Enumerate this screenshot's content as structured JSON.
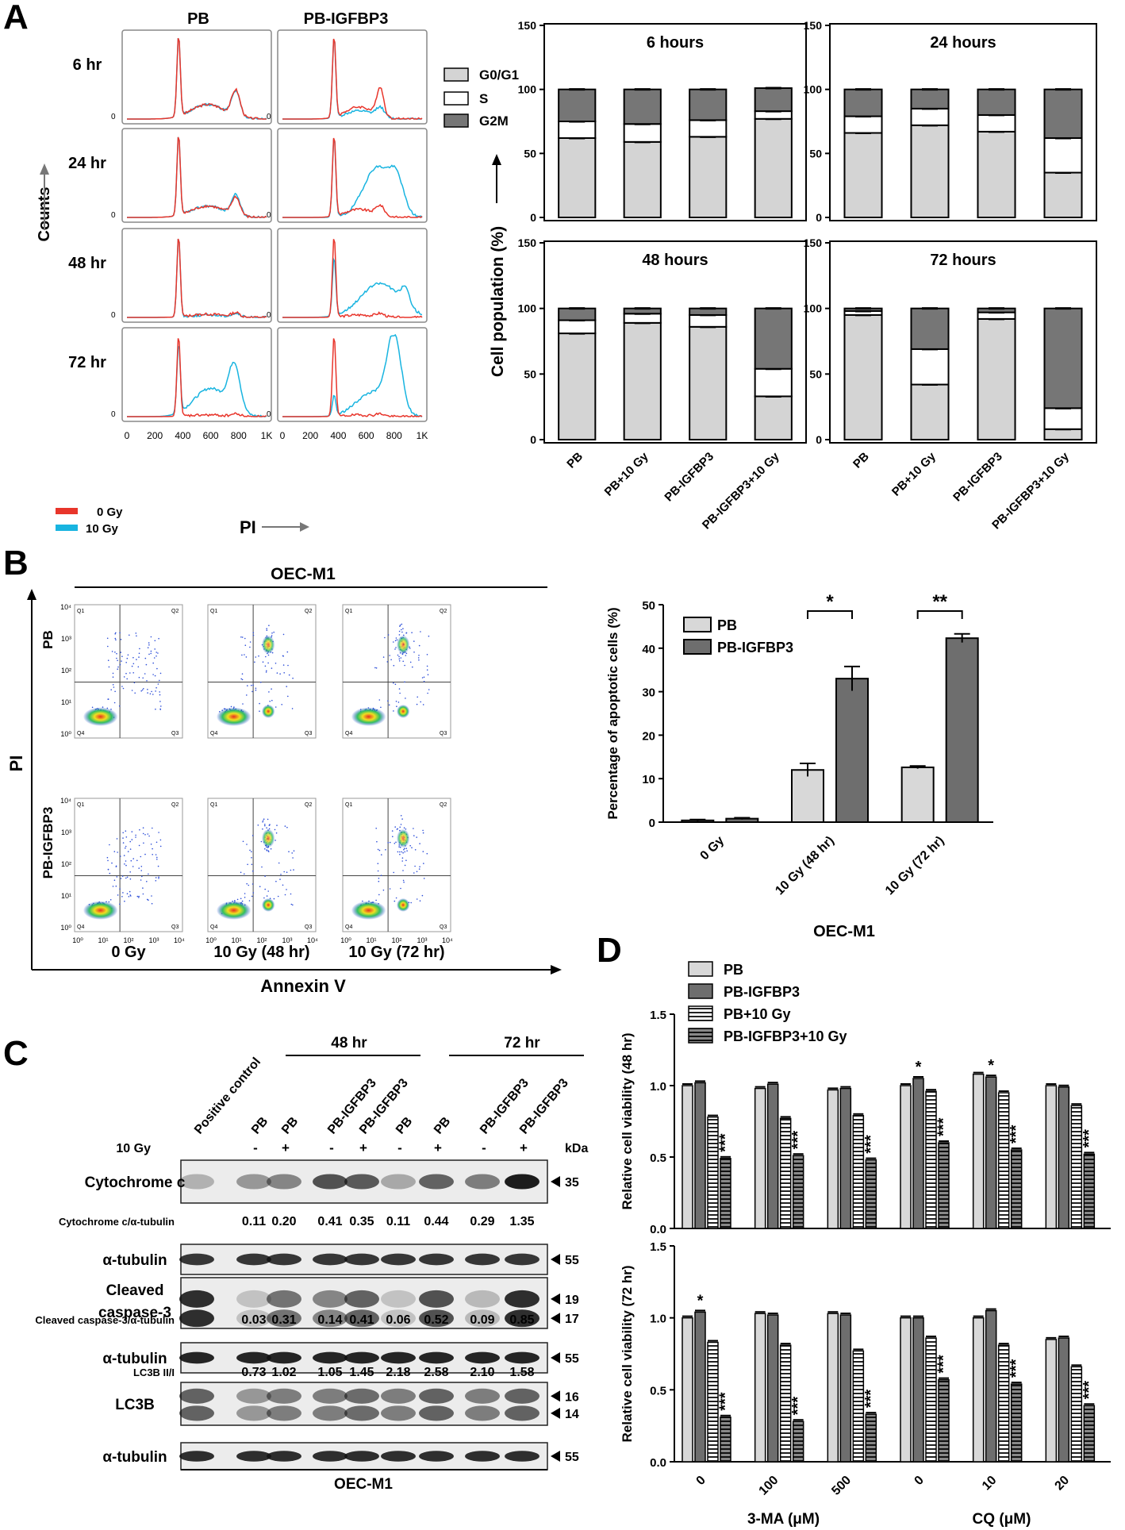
{
  "panel_letters": {
    "a": "A",
    "b": "B",
    "c": "C",
    "d": "D"
  },
  "colors": {
    "red": "#e8352b",
    "cyan": "#18b4e0",
    "g0g1": "#d4d4d4",
    "s": "#ffffff",
    "g2m": "#767676",
    "dark_bar": "#6e6e6e",
    "light_bar": "#d8d8d8"
  },
  "panelA": {
    "col_pb": "PB",
    "col_pbigfbp3": "PB-IGFBP3",
    "rows": [
      "6 hr",
      "24 hr",
      "48 hr",
      "72 hr"
    ],
    "zero_label": "0",
    "x_ticks": [
      "0",
      "200",
      "400",
      "600",
      "800",
      "1K"
    ],
    "ylabel": "Counts",
    "xlabel": "PI",
    "legend": [
      {
        "label": "0 Gy",
        "color": "#e8352b"
      },
      {
        "label": "10 Gy",
        "color": "#18b4e0"
      }
    ]
  },
  "panelB": {
    "title": "OEC-M1",
    "row_labels": [
      "PB",
      "PB-IGFBP3"
    ],
    "col_labels": [
      "0 Gy",
      "10 Gy (48 hr)",
      "10 Gy (72 hr)"
    ],
    "ylabel": "PI",
    "xlabel": "Annexin V",
    "quadrants": [
      "Q1",
      "Q2",
      "Q3",
      "Q4"
    ],
    "y_ticks": [
      "10⁰",
      "10¹",
      "10²",
      "10³",
      "10⁴"
    ],
    "x_ticks": [
      "10⁰",
      "10¹",
      "10²",
      "10³",
      "10⁴"
    ]
  },
  "panelC": {
    "header_48": "48 hr",
    "header_72": "72 hr",
    "lane_labels": [
      "Positive control",
      "PB",
      "PB",
      "PB-IGFBP3",
      "PB-IGFBP3",
      "PB",
      "PB",
      "PB-IGFBP3",
      "PB-IGFBP3"
    ],
    "gy_label": "10 Gy",
    "gy_signs": [
      "-",
      "+",
      "-",
      "+",
      "-",
      "+",
      "-",
      "+"
    ],
    "kda_label": "kDa",
    "blots": [
      {
        "label": "Cytochrome c",
        "kda": [
          "35"
        ]
      },
      {
        "label": "α-tubulin",
        "kda": [
          "55"
        ]
      },
      {
        "label": "Cleaved caspase-3",
        "kda": [
          "19",
          "17"
        ]
      },
      {
        "label": "α-tubulin",
        "kda": [
          "55"
        ]
      },
      {
        "label": "LC3B",
        "kda": [
          "16",
          "14"
        ]
      },
      {
        "label": "α-tubulin",
        "kda": [
          "55"
        ]
      }
    ],
    "ratios": [
      {
        "label": "Cytochrome c/α-tubulin",
        "values": [
          "0.11",
          "0.20",
          "0.41",
          "0.35",
          "0.11",
          "0.44",
          "0.29",
          "1.35"
        ]
      },
      {
        "label": "Cleaved caspase-3/α-tubulin",
        "values": [
          "0.03",
          "0.31",
          "0.14",
          "0.41",
          "0.06",
          "0.52",
          "0.09",
          "0.85"
        ]
      },
      {
        "label": "LC3B II/I",
        "values": [
          "0.73",
          "1.02",
          "1.05",
          "1.45",
          "2.18",
          "2.58",
          "2.10",
          "1.58"
        ]
      }
    ],
    "footer": "OEC-M1"
  },
  "chart_data": [
    {
      "type": "bar",
      "stacked": true,
      "title": "6 hours",
      "categories": [
        "PB",
        "PB+10 Gy",
        "PB-IGFBP3",
        "PB-IGFBP3+10 Gy"
      ],
      "series": [
        {
          "name": "G0/G1",
          "values": [
            62,
            59,
            63,
            77
          ]
        },
        {
          "name": "S",
          "values": [
            13,
            14,
            13,
            6
          ]
        },
        {
          "name": "G2M",
          "values": [
            25,
            27,
            24,
            18
          ]
        }
      ],
      "ylabel": "Cell population (%)",
      "ylim": [
        0,
        150
      ],
      "yticks": [
        0,
        50,
        100,
        150
      ]
    },
    {
      "type": "bar",
      "stacked": true,
      "title": "24 hours",
      "categories": [
        "PB",
        "PB+10 Gy",
        "PB-IGFBP3",
        "PB-IGFBP3+10 Gy"
      ],
      "series": [
        {
          "name": "G0/G1",
          "values": [
            66,
            72,
            67,
            35
          ]
        },
        {
          "name": "S",
          "values": [
            13,
            13,
            13,
            27
          ]
        },
        {
          "name": "G2M",
          "values": [
            21,
            15,
            20,
            38
          ]
        }
      ],
      "ylim": [
        0,
        150
      ],
      "yticks": [
        0,
        50,
        100,
        150
      ]
    },
    {
      "type": "bar",
      "stacked": true,
      "title": "48 hours",
      "categories": [
        "PB",
        "PB+10 Gy",
        "PB-IGFBP3",
        "PB-IGFBP3+10 Gy"
      ],
      "series": [
        {
          "name": "G0/G1",
          "values": [
            81,
            89,
            86,
            33
          ]
        },
        {
          "name": "S",
          "values": [
            10,
            7,
            9,
            21
          ]
        },
        {
          "name": "G2M",
          "values": [
            9,
            4,
            5,
            46
          ]
        }
      ],
      "ylim": [
        0,
        150
      ],
      "yticks": [
        0,
        50,
        100,
        150
      ]
    },
    {
      "type": "bar",
      "stacked": true,
      "title": "72 hours",
      "categories": [
        "PB",
        "PB+10 Gy",
        "PB-IGFBP3",
        "PB-IGFBP3+10 Gy"
      ],
      "series": [
        {
          "name": "G0/G1",
          "values": [
            95,
            42,
            92,
            8
          ]
        },
        {
          "name": "S",
          "values": [
            3,
            27,
            5,
            16
          ]
        },
        {
          "name": "G2M",
          "values": [
            2,
            31,
            3,
            76
          ]
        }
      ],
      "ylim": [
        0,
        150
      ],
      "yticks": [
        0,
        50,
        100,
        150
      ]
    },
    {
      "type": "bar",
      "title": "",
      "xlabel": "OEC-M1",
      "ylabel": "Percentage of apoptotic cells (%)",
      "categories": [
        "0 Gy",
        "10 Gy (48 hr)",
        "10 Gy (72 hr)"
      ],
      "series": [
        {
          "name": "PB",
          "values": [
            0.4,
            12,
            12.6
          ],
          "errors": [
            0.2,
            1.5,
            0.3
          ]
        },
        {
          "name": "PB-IGFBP3",
          "values": [
            0.8,
            33,
            42.3
          ],
          "errors": [
            0.2,
            2.8,
            1.0
          ]
        }
      ],
      "ylim": [
        0,
        50
      ],
      "yticks": [
        0,
        10,
        20,
        30,
        40,
        50
      ],
      "annotations": [
        {
          "category": "10 Gy (48 hr)",
          "text": "*"
        },
        {
          "category": "10 Gy (72 hr)",
          "text": "**"
        }
      ]
    },
    {
      "type": "bar",
      "ylabel": "Relative cell viability (48 hr)",
      "ylim": [
        0,
        1.5
      ],
      "yticks": [
        "0.0",
        "0.5",
        "1.0",
        "1.5"
      ],
      "categories": [
        "0",
        "100",
        "500",
        "0",
        "10",
        "20"
      ],
      "group_labels": [
        "3-MA (μM)",
        "CQ (μM)"
      ],
      "series": [
        {
          "name": "PB",
          "values": [
            1.0,
            0.98,
            0.97,
            1.0,
            1.08,
            1.0
          ]
        },
        {
          "name": "PB-IGFBP3",
          "values": [
            1.02,
            1.01,
            0.98,
            1.05,
            1.06,
            0.99
          ]
        },
        {
          "name": "PB+10 Gy",
          "values": [
            0.78,
            0.77,
            0.79,
            0.96,
            0.95,
            0.86
          ]
        },
        {
          "name": "PB-IGFBP3+10 Gy",
          "values": [
            0.49,
            0.51,
            0.48,
            0.6,
            0.55,
            0.52
          ]
        }
      ],
      "annotations": [
        {
          "index": 0,
          "series": 3,
          "text": "***"
        },
        {
          "index": 1,
          "series": 3,
          "text": "***"
        },
        {
          "index": 2,
          "series": 3,
          "text": "***"
        },
        {
          "index": 3,
          "series": 1,
          "text": "*"
        },
        {
          "index": 3,
          "series": 3,
          "text": "***"
        },
        {
          "index": 4,
          "series": 1,
          "text": "*"
        },
        {
          "index": 4,
          "series": 3,
          "text": "***"
        },
        {
          "index": 5,
          "series": 3,
          "text": "***"
        }
      ]
    },
    {
      "type": "bar",
      "ylabel": "Relative cell viability (72 hr)",
      "xlabel_left": "3-MA (μM)",
      "xlabel_right": "CQ (μM)",
      "ylim": [
        0,
        1.5
      ],
      "yticks": [
        "0.0",
        "0.5",
        "1.0",
        "1.5"
      ],
      "categories": [
        "0",
        "100",
        "500",
        "0",
        "10",
        "20"
      ],
      "series": [
        {
          "name": "PB",
          "values": [
            1.0,
            1.03,
            1.03,
            1.0,
            1.0,
            0.85
          ]
        },
        {
          "name": "PB-IGFBP3",
          "values": [
            1.04,
            1.02,
            1.02,
            1.0,
            1.05,
            0.86
          ]
        },
        {
          "name": "PB+10 Gy",
          "values": [
            0.83,
            0.81,
            0.77,
            0.86,
            0.81,
            0.66
          ]
        },
        {
          "name": "PB-IGFBP3+10 Gy",
          "values": [
            0.31,
            0.28,
            0.33,
            0.57,
            0.54,
            0.39
          ]
        }
      ],
      "annotations": [
        {
          "index": 0,
          "series": 1,
          "text": "*"
        },
        {
          "index": 0,
          "series": 3,
          "text": "***"
        },
        {
          "index": 1,
          "series": 3,
          "text": "***"
        },
        {
          "index": 2,
          "series": 3,
          "text": "***"
        },
        {
          "index": 3,
          "series": 3,
          "text": "***"
        },
        {
          "index": 4,
          "series": 3,
          "text": "***"
        },
        {
          "index": 5,
          "series": 3,
          "text": "***"
        }
      ]
    }
  ]
}
